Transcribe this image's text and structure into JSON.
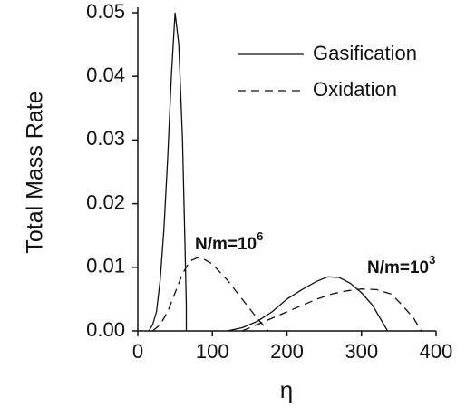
{
  "chart_data": {
    "type": "line",
    "y_label": "Total Mass Rate",
    "x_label": "η",
    "xlim": [
      0,
      400
    ],
    "xticks": [
      0,
      100,
      200,
      300,
      400
    ],
    "ylim": [
      0,
      0.05
    ],
    "yticks": [
      {
        "value": 0,
        "label": "0.00"
      },
      0.01,
      0.02,
      0.03,
      0.04,
      0.05
    ],
    "legend": "upper right",
    "series": [
      {
        "name": "Gasification",
        "color": "#111111",
        "style": "solid",
        "x": [
          15,
          20,
          25,
          30,
          35,
          40,
          45,
          50,
          55,
          60,
          63,
          65,
          65,
          null,
          120,
          140,
          160,
          180,
          200,
          220,
          240,
          255,
          270,
          285,
          300,
          315,
          325,
          335
        ],
        "values": [
          0,
          0.001,
          0.003,
          0.008,
          0.016,
          0.027,
          0.04,
          0.05,
          0.045,
          0.03,
          0.015,
          0.004,
          0,
          null,
          0,
          0.0005,
          0.0015,
          0.003,
          0.005,
          0.0065,
          0.0078,
          0.0085,
          0.0084,
          0.0075,
          0.006,
          0.004,
          0.002,
          0
        ]
      },
      {
        "name": "Oxidation",
        "color": "#111111",
        "style": "dashed",
        "x": [
          20,
          30,
          40,
          50,
          60,
          70,
          80,
          90,
          100,
          120,
          140,
          160,
          175,
          null,
          140,
          160,
          180,
          200,
          220,
          240,
          260,
          280,
          300,
          320,
          340,
          355,
          370,
          380
        ],
        "values": [
          0,
          0.001,
          0.003,
          0.006,
          0.009,
          0.011,
          0.0115,
          0.0112,
          0.0105,
          0.008,
          0.005,
          0.002,
          0,
          null,
          0,
          0.001,
          0.002,
          0.003,
          0.004,
          0.005,
          0.0058,
          0.0063,
          0.0066,
          0.0065,
          0.0058,
          0.004,
          0.002,
          0
        ]
      }
    ],
    "annotations": [
      {
        "text": "N/m=10",
        "exponent": "6"
      },
      {
        "text": "N/m=10",
        "exponent": "3"
      }
    ]
  }
}
